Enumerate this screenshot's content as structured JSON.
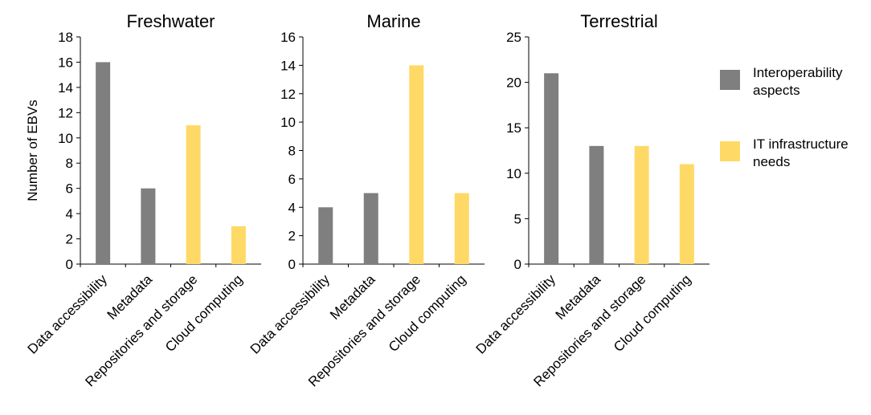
{
  "chart_data": [
    {
      "type": "bar",
      "title": "Freshwater",
      "ylabel": "Number of EBVs",
      "xlabel": "",
      "ylim": [
        0,
        18
      ],
      "yticks": [
        0,
        2,
        4,
        6,
        8,
        10,
        12,
        14,
        16,
        18
      ],
      "categories": [
        "Data accessibility",
        "Metadata",
        "Repositories and storage",
        "Cloud computing"
      ],
      "values": [
        16,
        6,
        11,
        3
      ],
      "bar_groups": [
        "Interoperability aspects",
        "Interoperability aspects",
        "IT infrastructure needs",
        "IT infrastructure needs"
      ]
    },
    {
      "type": "bar",
      "title": "Marine",
      "ylabel": "",
      "xlabel": "",
      "ylim": [
        0,
        16
      ],
      "yticks": [
        0,
        2,
        4,
        6,
        8,
        10,
        12,
        14,
        16
      ],
      "categories": [
        "Data accessibility",
        "Metadata",
        "Repositories and storage",
        "Cloud computing"
      ],
      "values": [
        4,
        5,
        14,
        5
      ],
      "bar_groups": [
        "Interoperability aspects",
        "Interoperability aspects",
        "IT infrastructure needs",
        "IT infrastructure needs"
      ]
    },
    {
      "type": "bar",
      "title": "Terrestrial",
      "ylabel": "",
      "xlabel": "",
      "ylim": [
        0,
        25
      ],
      "yticks": [
        0,
        5,
        10,
        15,
        20,
        25
      ],
      "categories": [
        "Data accessibility",
        "Metadata",
        "Repositories and storage",
        "Cloud computing"
      ],
      "values": [
        21,
        13,
        13,
        11
      ],
      "bar_groups": [
        "Interoperability aspects",
        "Interoperability aspects",
        "IT infrastructure needs",
        "IT infrastructure needs"
      ]
    }
  ],
  "legend": {
    "placement": "right",
    "items": [
      {
        "name": "Interoperability aspects",
        "lines": [
          "Interoperability",
          "aspects"
        ],
        "color": "#7f7f7f"
      },
      {
        "name": "IT infrastructure needs",
        "lines": [
          "IT infrastructure",
          "needs"
        ],
        "color": "#ffd966"
      }
    ]
  }
}
